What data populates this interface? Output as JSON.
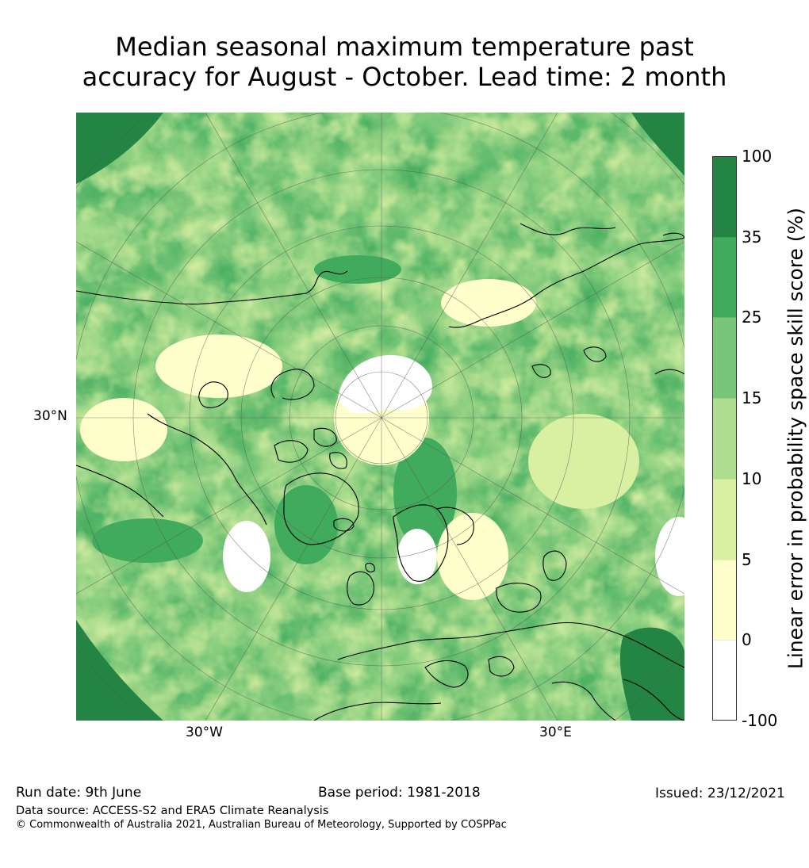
{
  "title": {
    "line1": "Median seasonal maximum temperature past",
    "line2": "accuracy for August - October. Lead time: 2 month"
  },
  "map": {
    "lat_label": "30°N",
    "lon_labels": {
      "west": "30°W",
      "east": "30°E"
    },
    "land_colors": [
      "#ffffff",
      "#ffffcc",
      "#d9f0a3",
      "#addd8e",
      "#78c679",
      "#41ab5d",
      "#238443"
    ]
  },
  "colorbar": {
    "label": "Linear error in probability space skill score (%)",
    "ticks": [
      "100",
      "35",
      "25",
      "15",
      "10",
      "5",
      "0",
      "-100"
    ],
    "bins": [
      {
        "range": "35 to 100",
        "color": "#238443"
      },
      {
        "range": "25 to 35",
        "color": "#41ab5d"
      },
      {
        "range": "15 to 25",
        "color": "#78c679"
      },
      {
        "range": "10 to 15",
        "color": "#addd8e"
      },
      {
        "range": "5 to 10",
        "color": "#d9f0a3"
      },
      {
        "range": "0 to 5",
        "color": "#ffffcc"
      },
      {
        "range": "-100 to 0",
        "color": "#ffffff"
      }
    ]
  },
  "footer": {
    "run_date": "Run date: 9th June",
    "base_period": "Base period: 1981-2018",
    "issued": "Issued: 23/12/2021",
    "data_source": "Data source: ACCESS-S2 and ERA5 Climate Reanalysis",
    "copyright": "© Commonwealth of Australia 2021, Australian Bureau of Meteorology, Supported by COSPPac"
  }
}
